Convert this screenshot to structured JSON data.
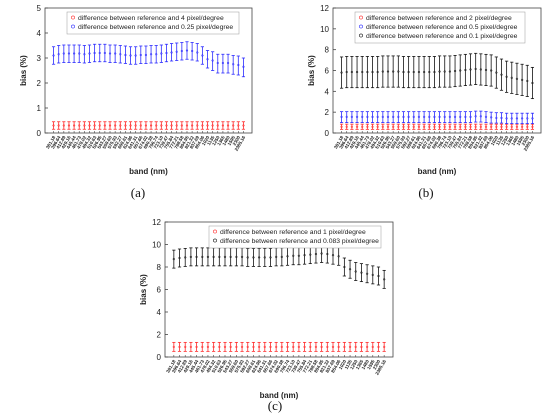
{
  "figure": {
    "panels": [
      {
        "caption": "(a)"
      },
      {
        "caption": "(b)"
      },
      {
        "caption": "(c)"
      }
    ]
  },
  "chart_data": [
    {
      "type": "scatter",
      "panel": "(a)",
      "xlabel": "band (nm)",
      "ylabel": "bias (%)",
      "ylim": [
        0,
        5
      ],
      "yticks": [
        0,
        1,
        2,
        3,
        4,
        5
      ],
      "grid": false,
      "legend_position": "top",
      "categories": [
        "381.18",
        "396.64",
        "412.89",
        "429.16",
        "445.44",
        "461.73",
        "478.02",
        "494.32",
        "510.63",
        "526.95",
        "543.27",
        "559.60",
        "575.93",
        "592.27",
        "608.61",
        "624.96",
        "641.31",
        "657.66",
        "674.02",
        "690.38",
        "706.74",
        "723.10",
        "739.47",
        "755.84",
        "772.21",
        "788.58",
        "804.95",
        "821.32",
        "837.69",
        "854.06",
        "1020",
        "1135",
        "1250",
        "1365",
        "1480",
        "1595",
        "2300",
        "2385.16"
      ],
      "series": [
        {
          "name": "difference between reference and 4 pixel/degree",
          "color": "#ff2a2a",
          "center": [
            0.3,
            0.3,
            0.3,
            0.3,
            0.3,
            0.3,
            0.3,
            0.3,
            0.3,
            0.3,
            0.3,
            0.3,
            0.3,
            0.3,
            0.3,
            0.3,
            0.3,
            0.3,
            0.3,
            0.3,
            0.3,
            0.3,
            0.3,
            0.3,
            0.3,
            0.3,
            0.3,
            0.3,
            0.3,
            0.3,
            0.3,
            0.3,
            0.3,
            0.3,
            0.3,
            0.3,
            0.3,
            0.3
          ],
          "low": [
            0.15,
            0.15,
            0.15,
            0.15,
            0.15,
            0.15,
            0.15,
            0.15,
            0.15,
            0.15,
            0.15,
            0.15,
            0.15,
            0.15,
            0.15,
            0.15,
            0.15,
            0.15,
            0.15,
            0.15,
            0.15,
            0.15,
            0.15,
            0.15,
            0.15,
            0.15,
            0.15,
            0.15,
            0.15,
            0.15,
            0.15,
            0.15,
            0.15,
            0.15,
            0.15,
            0.15,
            0.15,
            0.15
          ],
          "high": [
            0.45,
            0.45,
            0.45,
            0.45,
            0.45,
            0.45,
            0.45,
            0.45,
            0.45,
            0.45,
            0.45,
            0.45,
            0.45,
            0.45,
            0.45,
            0.45,
            0.45,
            0.45,
            0.45,
            0.45,
            0.45,
            0.45,
            0.45,
            0.45,
            0.45,
            0.45,
            0.45,
            0.45,
            0.45,
            0.45,
            0.45,
            0.45,
            0.45,
            0.45,
            0.45,
            0.45,
            0.45,
            0.45
          ]
        },
        {
          "name": "difference between reference and 0.25 pixel/degree",
          "color": "#2a2aff",
          "center": [
            3.1,
            3.15,
            3.18,
            3.18,
            3.18,
            3.18,
            3.15,
            3.18,
            3.2,
            3.2,
            3.2,
            3.18,
            3.18,
            3.15,
            3.12,
            3.1,
            3.1,
            3.12,
            3.12,
            3.15,
            3.15,
            3.18,
            3.2,
            3.22,
            3.25,
            3.28,
            3.3,
            3.28,
            3.22,
            3.1,
            2.95,
            2.9,
            2.8,
            2.8,
            2.8,
            2.75,
            2.72,
            2.65
          ],
          "low": [
            2.75,
            2.8,
            2.82,
            2.82,
            2.82,
            2.82,
            2.8,
            2.82,
            2.85,
            2.85,
            2.85,
            2.82,
            2.82,
            2.8,
            2.78,
            2.75,
            2.75,
            2.78,
            2.78,
            2.8,
            2.8,
            2.82,
            2.85,
            2.88,
            2.9,
            2.92,
            2.95,
            2.92,
            2.88,
            2.75,
            2.6,
            2.5,
            2.4,
            2.4,
            2.4,
            2.35,
            2.32,
            2.25
          ],
          "high": [
            3.45,
            3.5,
            3.52,
            3.52,
            3.52,
            3.52,
            3.5,
            3.52,
            3.55,
            3.55,
            3.55,
            3.52,
            3.52,
            3.5,
            3.48,
            3.45,
            3.45,
            3.48,
            3.48,
            3.5,
            3.5,
            3.52,
            3.55,
            3.58,
            3.6,
            3.62,
            3.65,
            3.62,
            3.58,
            3.45,
            3.3,
            3.25,
            3.15,
            3.15,
            3.15,
            3.1,
            3.08,
            3.0
          ]
        }
      ]
    },
    {
      "type": "scatter",
      "panel": "(b)",
      "xlabel": "band (nm)",
      "ylabel": "bias (%)",
      "ylim": [
        0,
        12
      ],
      "yticks": [
        0,
        2,
        4,
        6,
        8,
        10,
        12
      ],
      "grid": false,
      "legend_position": "top",
      "categories": [
        "381.18",
        "396.64",
        "412.89",
        "429.16",
        "445.44",
        "461.73",
        "478.02",
        "494.32",
        "510.63",
        "526.95",
        "543.27",
        "559.60",
        "575.93",
        "592.27",
        "608.61",
        "624.96",
        "641.31",
        "657.66",
        "674.02",
        "690.38",
        "706.74",
        "723.10",
        "739.47",
        "755.84",
        "772.21",
        "788.58",
        "804.95",
        "821.32",
        "837.69",
        "854.06",
        "1020",
        "1135",
        "1250",
        "1365",
        "1480",
        "1595",
        "2300",
        "2385.16"
      ],
      "series": [
        {
          "name": "difference between reference and 2 pixel/degree",
          "color": "#ff2a2a",
          "center": [
            0.6,
            0.6,
            0.6,
            0.6,
            0.6,
            0.6,
            0.6,
            0.6,
            0.6,
            0.6,
            0.6,
            0.6,
            0.6,
            0.6,
            0.6,
            0.6,
            0.6,
            0.6,
            0.6,
            0.6,
            0.6,
            0.6,
            0.6,
            0.6,
            0.6,
            0.6,
            0.6,
            0.6,
            0.6,
            0.6,
            0.6,
            0.6,
            0.6,
            0.6,
            0.6,
            0.6,
            0.6,
            0.6
          ],
          "low": [
            0.35,
            0.35,
            0.35,
            0.35,
            0.35,
            0.35,
            0.35,
            0.35,
            0.35,
            0.35,
            0.35,
            0.35,
            0.35,
            0.35,
            0.35,
            0.35,
            0.35,
            0.35,
            0.35,
            0.35,
            0.35,
            0.35,
            0.35,
            0.35,
            0.35,
            0.35,
            0.35,
            0.35,
            0.35,
            0.35,
            0.35,
            0.35,
            0.35,
            0.35,
            0.35,
            0.35,
            0.35,
            0.35
          ],
          "high": [
            0.85,
            0.85,
            0.85,
            0.85,
            0.85,
            0.85,
            0.85,
            0.85,
            0.85,
            0.85,
            0.85,
            0.85,
            0.85,
            0.85,
            0.85,
            0.85,
            0.85,
            0.85,
            0.85,
            0.85,
            0.85,
            0.85,
            0.85,
            0.85,
            0.85,
            0.85,
            0.85,
            0.85,
            0.85,
            0.85,
            0.85,
            0.85,
            0.85,
            0.85,
            0.85,
            0.85,
            0.85,
            0.85
          ]
        },
        {
          "name": "difference between reference and 0.5 pixel/degree",
          "color": "#2a2aff",
          "center": [
            1.55,
            1.55,
            1.55,
            1.55,
            1.55,
            1.55,
            1.55,
            1.55,
            1.55,
            1.55,
            1.55,
            1.55,
            1.55,
            1.55,
            1.55,
            1.55,
            1.55,
            1.55,
            1.55,
            1.55,
            1.55,
            1.55,
            1.55,
            1.55,
            1.55,
            1.55,
            1.6,
            1.6,
            1.55,
            1.5,
            1.45,
            1.45,
            1.4,
            1.4,
            1.4,
            1.4,
            1.4,
            1.4
          ],
          "low": [
            1.0,
            1.0,
            1.0,
            1.0,
            1.0,
            1.0,
            1.0,
            1.0,
            1.0,
            1.0,
            1.0,
            1.0,
            1.0,
            1.0,
            1.0,
            1.0,
            1.0,
            1.0,
            1.0,
            1.0,
            1.0,
            1.0,
            1.0,
            1.0,
            1.0,
            1.0,
            1.05,
            1.05,
            1.0,
            0.95,
            0.95,
            0.95,
            0.9,
            0.9,
            0.9,
            0.9,
            0.9,
            0.9
          ],
          "high": [
            2.05,
            2.05,
            2.05,
            2.05,
            2.05,
            2.05,
            2.05,
            2.05,
            2.05,
            2.05,
            2.05,
            2.05,
            2.05,
            2.05,
            2.05,
            2.05,
            2.05,
            2.05,
            2.05,
            2.05,
            2.05,
            2.05,
            2.05,
            2.05,
            2.05,
            2.05,
            2.1,
            2.1,
            2.05,
            2.0,
            1.95,
            1.95,
            1.9,
            1.9,
            1.9,
            1.9,
            1.9,
            1.9
          ]
        },
        {
          "name": "difference between reference and 0.1 pixel/degree",
          "color": "#111111",
          "center": [
            5.8,
            5.85,
            5.85,
            5.85,
            5.85,
            5.85,
            5.85,
            5.85,
            5.9,
            5.9,
            5.9,
            5.9,
            5.85,
            5.85,
            5.85,
            5.85,
            5.85,
            5.85,
            5.85,
            5.9,
            5.9,
            5.9,
            5.95,
            6.0,
            6.05,
            6.1,
            6.15,
            6.1,
            6.05,
            6.0,
            5.8,
            5.6,
            5.4,
            5.3,
            5.2,
            5.1,
            5.0,
            4.8
          ],
          "low": [
            4.3,
            4.35,
            4.35,
            4.35,
            4.35,
            4.35,
            4.35,
            4.35,
            4.4,
            4.4,
            4.4,
            4.4,
            4.35,
            4.35,
            4.35,
            4.35,
            4.35,
            4.35,
            4.35,
            4.4,
            4.4,
            4.4,
            4.45,
            4.5,
            4.55,
            4.6,
            4.65,
            4.6,
            4.55,
            4.5,
            4.3,
            4.1,
            3.9,
            3.8,
            3.7,
            3.6,
            3.5,
            3.3
          ],
          "high": [
            7.3,
            7.35,
            7.35,
            7.35,
            7.35,
            7.35,
            7.35,
            7.35,
            7.4,
            7.4,
            7.4,
            7.4,
            7.35,
            7.35,
            7.35,
            7.35,
            7.35,
            7.35,
            7.35,
            7.4,
            7.4,
            7.4,
            7.45,
            7.5,
            7.55,
            7.6,
            7.65,
            7.6,
            7.55,
            7.5,
            7.3,
            7.1,
            6.9,
            6.8,
            6.7,
            6.6,
            6.5,
            6.3
          ]
        }
      ]
    },
    {
      "type": "scatter",
      "panel": "(c)",
      "xlabel": "band (nm)",
      "ylabel": "bias (%)",
      "ylim": [
        0,
        12
      ],
      "yticks": [
        0,
        2,
        4,
        6,
        8,
        10,
        12
      ],
      "grid": false,
      "legend_position": "top",
      "categories": [
        "381.18",
        "396.64",
        "412.89",
        "429.16",
        "445.44",
        "461.73",
        "478.02",
        "494.32",
        "510.63",
        "526.95",
        "543.27",
        "559.60",
        "575.93",
        "592.27",
        "608.61",
        "624.96",
        "641.31",
        "657.66",
        "674.02",
        "690.38",
        "706.74",
        "723.10",
        "739.47",
        "755.84",
        "772.21",
        "788.58",
        "804.95",
        "821.32",
        "837.69",
        "854.06",
        "1020",
        "1135",
        "1250",
        "1365",
        "1480",
        "1595",
        "2300",
        "2385.16"
      ],
      "series": [
        {
          "name": "difference between reference and 1 pixel/degree",
          "color": "#ff2a2a",
          "center": [
            0.9,
            0.9,
            0.9,
            0.9,
            0.9,
            0.9,
            0.9,
            0.9,
            0.9,
            0.9,
            0.9,
            0.9,
            0.9,
            0.9,
            0.9,
            0.9,
            0.9,
            0.9,
            0.9,
            0.9,
            0.9,
            0.9,
            0.9,
            0.9,
            0.9,
            0.9,
            0.9,
            0.9,
            0.9,
            0.9,
            0.9,
            0.9,
            0.9,
            0.9,
            0.9,
            0.9,
            0.9,
            0.9
          ],
          "low": [
            0.5,
            0.5,
            0.5,
            0.5,
            0.5,
            0.5,
            0.5,
            0.5,
            0.5,
            0.5,
            0.5,
            0.5,
            0.5,
            0.5,
            0.5,
            0.5,
            0.5,
            0.5,
            0.5,
            0.5,
            0.5,
            0.5,
            0.5,
            0.5,
            0.5,
            0.5,
            0.5,
            0.5,
            0.5,
            0.5,
            0.5,
            0.5,
            0.5,
            0.5,
            0.5,
            0.5,
            0.5,
            0.5
          ],
          "high": [
            1.3,
            1.3,
            1.3,
            1.3,
            1.3,
            1.3,
            1.3,
            1.3,
            1.3,
            1.3,
            1.3,
            1.3,
            1.3,
            1.3,
            1.3,
            1.3,
            1.3,
            1.3,
            1.3,
            1.3,
            1.3,
            1.3,
            1.3,
            1.3,
            1.3,
            1.3,
            1.3,
            1.3,
            1.3,
            1.3,
            1.3,
            1.3,
            1.3,
            1.3,
            1.3,
            1.3,
            1.3,
            1.3
          ]
        },
        {
          "name": "difference between reference and 0.083 pixel/degree",
          "color": "#111111",
          "center": [
            8.7,
            8.8,
            8.85,
            8.9,
            8.9,
            8.9,
            8.9,
            8.9,
            8.9,
            8.9,
            8.9,
            8.9,
            8.9,
            8.85,
            8.85,
            8.85,
            8.85,
            8.85,
            8.9,
            8.9,
            8.95,
            9.0,
            9.0,
            9.05,
            9.1,
            9.15,
            9.2,
            9.15,
            9.05,
            8.95,
            8.0,
            7.8,
            7.6,
            7.5,
            7.4,
            7.3,
            7.2,
            6.9
          ],
          "low": [
            7.9,
            8.0,
            8.05,
            8.1,
            8.1,
            8.1,
            8.1,
            8.1,
            8.1,
            8.1,
            8.1,
            8.1,
            8.1,
            8.05,
            8.05,
            8.05,
            8.05,
            8.05,
            8.1,
            8.1,
            8.15,
            8.2,
            8.2,
            8.25,
            8.3,
            8.35,
            8.4,
            8.35,
            8.25,
            8.15,
            7.2,
            7.0,
            6.8,
            6.7,
            6.6,
            6.5,
            6.4,
            6.1
          ],
          "high": [
            9.5,
            9.6,
            9.65,
            9.7,
            9.7,
            9.7,
            9.7,
            9.7,
            9.7,
            9.7,
            9.7,
            9.7,
            9.7,
            9.65,
            9.65,
            9.65,
            9.65,
            9.65,
            9.7,
            9.7,
            9.75,
            9.8,
            9.8,
            9.85,
            9.9,
            9.95,
            10.0,
            9.95,
            9.85,
            9.75,
            8.8,
            8.6,
            8.4,
            8.3,
            8.2,
            8.1,
            8.0,
            7.7
          ]
        }
      ]
    }
  ]
}
